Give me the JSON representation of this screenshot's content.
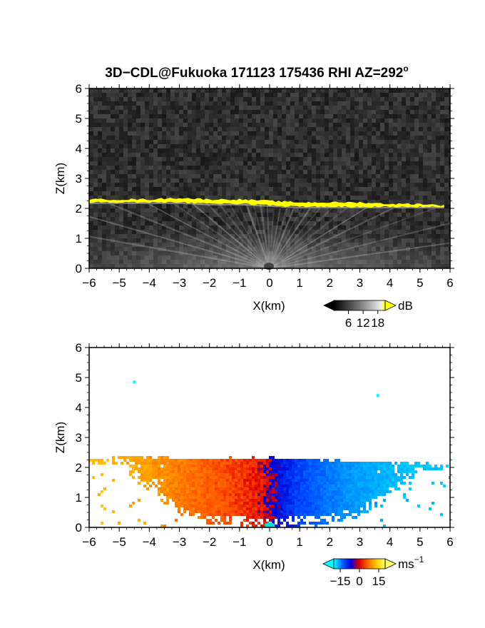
{
  "figure": {
    "title": "3D−CDL@Fukuoka 171123 175436 RHI AZ=292",
    "title_superscript": "o"
  },
  "colors": {
    "background": "#ffffff",
    "echo_noise_bg": "#2a2a2a",
    "echo_layer": "#ffff00",
    "velocity_cmap": [
      "#00ffff",
      "#0066ff",
      "#0000dd",
      "#dd0000",
      "#ff6600",
      "#ffcc00",
      "#ffff66"
    ]
  },
  "chart_data": [
    {
      "type": "heatmap",
      "name": "intensity",
      "xlabel": "X(km)",
      "ylabel": "Z(km)",
      "xlim": [
        -6,
        6
      ],
      "ylim": [
        0,
        6
      ],
      "x_ticks": [
        "−6",
        "−5",
        "−4",
        "−3",
        "−2",
        "−1",
        "0",
        "1",
        "2",
        "3",
        "4",
        "5",
        "6"
      ],
      "y_ticks": [
        "0",
        "1",
        "2",
        "3",
        "4",
        "5",
        "6"
      ],
      "grid": false,
      "colorbar": {
        "unit": "dB",
        "ticks": [
          "6",
          "12",
          "18"
        ],
        "range": [
          0,
          21
        ]
      },
      "layer_top_km": [
        [
          -6,
          2.3
        ],
        [
          -5,
          2.3
        ],
        [
          -4,
          2.3
        ],
        [
          -3,
          2.35
        ],
        [
          -2,
          2.3
        ],
        [
          -1,
          2.3
        ],
        [
          0,
          2.25
        ],
        [
          1,
          2.2
        ],
        [
          2,
          2.2
        ],
        [
          3,
          2.2
        ],
        [
          4,
          2.15
        ],
        [
          5,
          2.15
        ],
        [
          5.8,
          2.1
        ]
      ],
      "layer_bottom_km": [
        [
          -6,
          2.2
        ],
        [
          -5,
          2.2
        ],
        [
          -4,
          2.2
        ],
        [
          -3,
          2.2
        ],
        [
          -2,
          2.15
        ],
        [
          -1,
          2.15
        ],
        [
          0,
          2.1
        ],
        [
          1,
          2.05
        ],
        [
          2,
          2.05
        ],
        [
          3,
          2.05
        ],
        [
          4,
          2.05
        ],
        [
          5,
          2.05
        ],
        [
          5.8,
          2.05
        ]
      ]
    },
    {
      "type": "heatmap",
      "name": "doppler_velocity",
      "xlabel": "X(km)",
      "ylabel": "Z(km)",
      "xlim": [
        -6,
        6
      ],
      "ylim": [
        0,
        6
      ],
      "x_ticks": [
        "−6",
        "−5",
        "−4",
        "−3",
        "−2",
        "−1",
        "0",
        "1",
        "2",
        "3",
        "4",
        "5",
        "6"
      ],
      "y_ticks": [
        "0",
        "1",
        "2",
        "3",
        "4",
        "5",
        "6"
      ],
      "grid": false,
      "colorbar": {
        "unit": "ms",
        "unit_superscript": "−1",
        "ticks": [
          "−15",
          "0",
          "15"
        ],
        "range": [
          -20,
          20
        ]
      },
      "velocity_by_x_ms": [
        [
          -6,
          12
        ],
        [
          -5,
          11
        ],
        [
          -4,
          9
        ],
        [
          -3,
          7
        ],
        [
          -2,
          5
        ],
        [
          -1,
          3
        ],
        [
          -0.2,
          1
        ],
        [
          0.2,
          -1
        ],
        [
          1,
          -5
        ],
        [
          2,
          -9
        ],
        [
          3,
          -12
        ],
        [
          4,
          -14
        ],
        [
          5,
          -15
        ],
        [
          6,
          -15
        ]
      ],
      "echo_top_km": [
        [
          -6,
          2.35
        ],
        [
          -5,
          2.35
        ],
        [
          -4,
          2.45
        ],
        [
          -3,
          2.3
        ],
        [
          -2,
          2.3
        ],
        [
          -1,
          2.3
        ],
        [
          0,
          2.3
        ],
        [
          1,
          2.3
        ],
        [
          2,
          2.25
        ],
        [
          3,
          2.2
        ],
        [
          4,
          2.15
        ],
        [
          5,
          2.15
        ],
        [
          6,
          2.1
        ]
      ],
      "echo_bottom_km": [
        [
          -6,
          2.1
        ],
        [
          -5,
          2.05
        ],
        [
          -4,
          1.2
        ],
        [
          -3,
          0.4
        ],
        [
          -2,
          0.1
        ],
        [
          -1,
          0.05
        ],
        [
          0,
          0.0
        ],
        [
          1,
          0.05
        ],
        [
          2,
          0.15
        ],
        [
          3,
          0.35
        ],
        [
          4,
          1.0
        ],
        [
          5,
          1.8
        ],
        [
          6,
          2.0
        ]
      ],
      "isolated_echoes_km": [
        [
          -4.5,
          4.85
        ],
        [
          3.6,
          4.4
        ]
      ]
    }
  ]
}
